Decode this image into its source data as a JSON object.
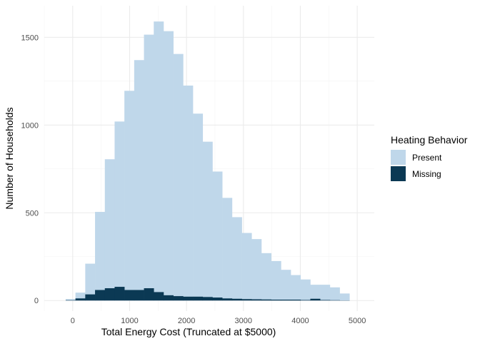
{
  "chart_data": {
    "type": "histogram",
    "xlabel": "Total Energy Cost (Truncated at $5000)",
    "ylabel": "Number of Households",
    "xlim": [
      -500,
      5300
    ],
    "ylim": [
      -60,
      1680
    ],
    "x_ticks": [
      0,
      1000,
      2000,
      3000,
      4000,
      5000
    ],
    "y_ticks": [
      0,
      500,
      1000,
      1500
    ],
    "x_tick_labels": [
      "0",
      "1000",
      "2000",
      "3000",
      "4000",
      "5000"
    ],
    "y_tick_labels": [
      "0",
      "500",
      "1000",
      "1500"
    ],
    "bin_width": 172,
    "bin_starts": [
      -124,
      48,
      220,
      392,
      564,
      736,
      908,
      1080,
      1252,
      1424,
      1596,
      1768,
      1940,
      2112,
      2284,
      2456,
      2628,
      2800,
      2972,
      3144,
      3316,
      3488,
      3660,
      3832,
      4004,
      4176,
      4348,
      4520,
      4692,
      4864
    ],
    "series": [
      {
        "name": "Present",
        "color": "#bfd7ea",
        "values": [
          8,
          45,
          210,
          505,
          805,
          1020,
          1195,
          1370,
          1515,
          1590,
          1535,
          1405,
          1225,
          1065,
          905,
          735,
          585,
          475,
          385,
          350,
          270,
          225,
          175,
          145,
          120,
          90,
          90,
          75,
          40,
          0
        ]
      },
      {
        "name": "Missing",
        "color": "#0b3954",
        "values": [
          2,
          12,
          35,
          60,
          70,
          78,
          60,
          60,
          70,
          48,
          30,
          25,
          22,
          22,
          20,
          17,
          12,
          10,
          8,
          7,
          6,
          5,
          5,
          5,
          3,
          10,
          3,
          2,
          1,
          0
        ]
      }
    ],
    "legend": {
      "title": "Heating Behavior",
      "position": "right"
    },
    "grid": true
  }
}
